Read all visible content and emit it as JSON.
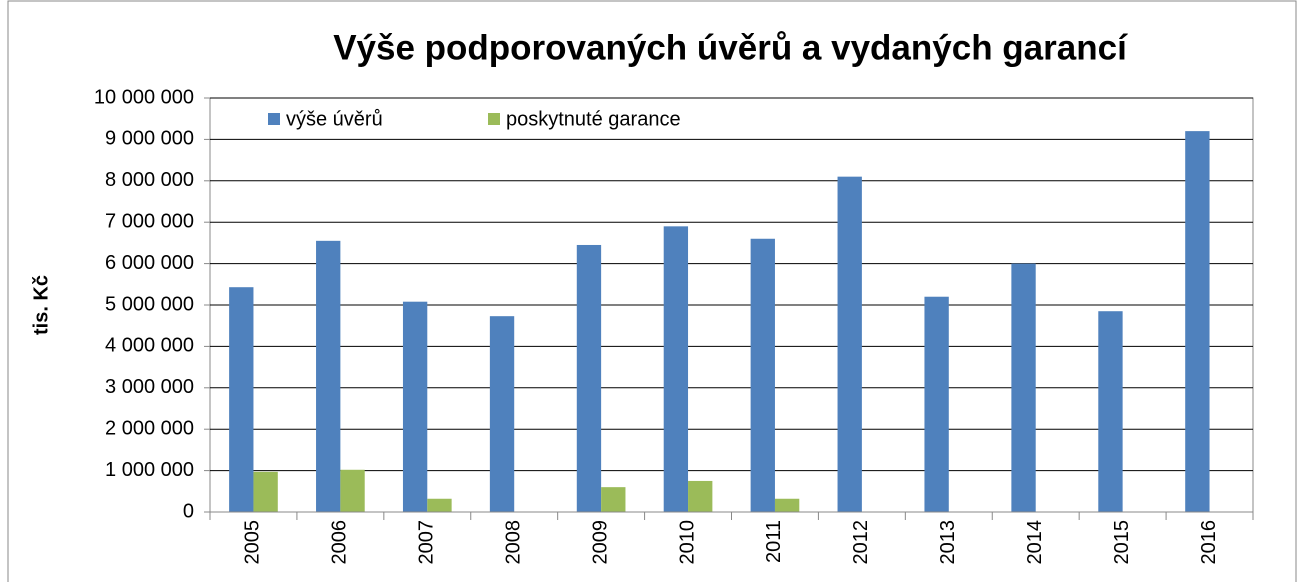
{
  "chart_data": {
    "type": "bar",
    "title": "Výše podporovaných úvěrů a vydaných garancí",
    "y_label": "tis. Kč",
    "categories": [
      "2005",
      "2006",
      "2007",
      "2008",
      "2009",
      "2010",
      "2011",
      "2012",
      "2013",
      "2014",
      "2015",
      "2016"
    ],
    "series": [
      {
        "name": "výše úvěrů",
        "color": "#4f81bd",
        "values": [
          5430000,
          6550000,
          5080000,
          4730000,
          6450000,
          6900000,
          6600000,
          8100000,
          5200000,
          6000000,
          4850000,
          9200000
        ]
      },
      {
        "name": "poskytnuté garance",
        "color": "#9bbb59",
        "values": [
          970000,
          1020000,
          320000,
          0,
          600000,
          750000,
          320000,
          0,
          0,
          0,
          0,
          0
        ]
      }
    ],
    "ylim": [
      0,
      10000000
    ],
    "yticks": [
      0,
      {
        "value": 1000000,
        "label": "1 000 000"
      },
      {
        "value": 2000000,
        "label": "2 000 000"
      },
      {
        "value": 3000000,
        "label": "3 000 000"
      },
      {
        "value": 4000000,
        "label": "4 000 000"
      },
      {
        "value": 5000000,
        "label": "5 000 000"
      },
      {
        "value": 6000000,
        "label": "6 000 000"
      },
      {
        "value": 7000000,
        "label": "7 000 000"
      },
      {
        "value": 8000000,
        "label": "8 000 000"
      },
      {
        "value": 9000000,
        "label": "9 000 000"
      },
      {
        "value": 10000000,
        "label": "10 000 000"
      }
    ],
    "grid": true,
    "legend": "top-left"
  }
}
